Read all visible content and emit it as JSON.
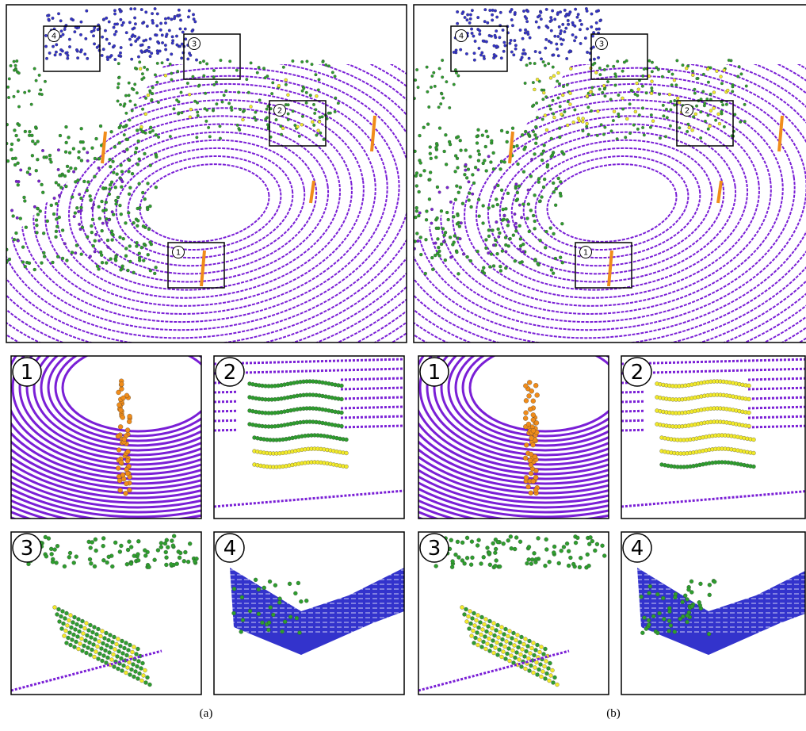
{
  "panels": [
    {
      "caption": "(a)",
      "main_labels": [
        "1",
        "2",
        "3",
        "4"
      ],
      "zoom_labels": [
        "1",
        "2",
        "3",
        "4"
      ]
    },
    {
      "caption": "(b)",
      "main_labels": [
        "1",
        "2",
        "3",
        "4"
      ],
      "zoom_labels": [
        "1",
        "2",
        "3",
        "4"
      ]
    }
  ]
}
